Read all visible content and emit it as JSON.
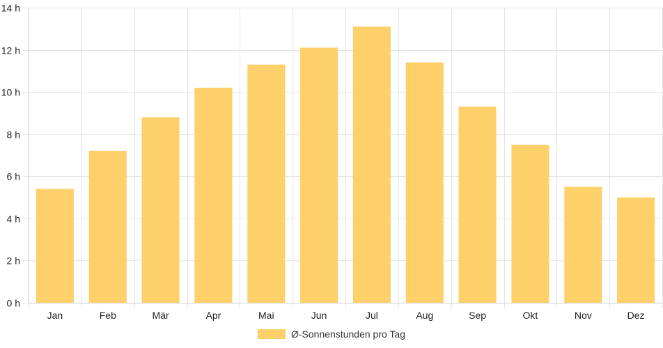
{
  "chart_data": {
    "type": "bar",
    "categories": [
      "Jan",
      "Feb",
      "Mär",
      "Apr",
      "Mai",
      "Jun",
      "Jul",
      "Aug",
      "Sep",
      "Okt",
      "Nov",
      "Dez"
    ],
    "series": [
      {
        "name": "Ø-Sonnenstunden pro Tag",
        "values": [
          5.4,
          7.2,
          8.8,
          10.2,
          11.3,
          12.1,
          13.1,
          11.4,
          9.3,
          7.5,
          5.5,
          5.0
        ]
      }
    ],
    "y_ticks": [
      "0 h",
      "2 h",
      "4 h",
      "6 h",
      "8 h",
      "10 h",
      "12 h",
      "14 h"
    ],
    "ylim": [
      0,
      14
    ],
    "y_step": 2,
    "grid": true,
    "legend_position": "bottom",
    "title": "",
    "xlabel": "",
    "ylabel": ""
  },
  "colors": {
    "bar": "#fdd06a",
    "grid": "#e4e4e4",
    "axis": "#d0d0d0"
  },
  "legend": {
    "label": "Ø-Sonnenstunden pro Tag"
  }
}
